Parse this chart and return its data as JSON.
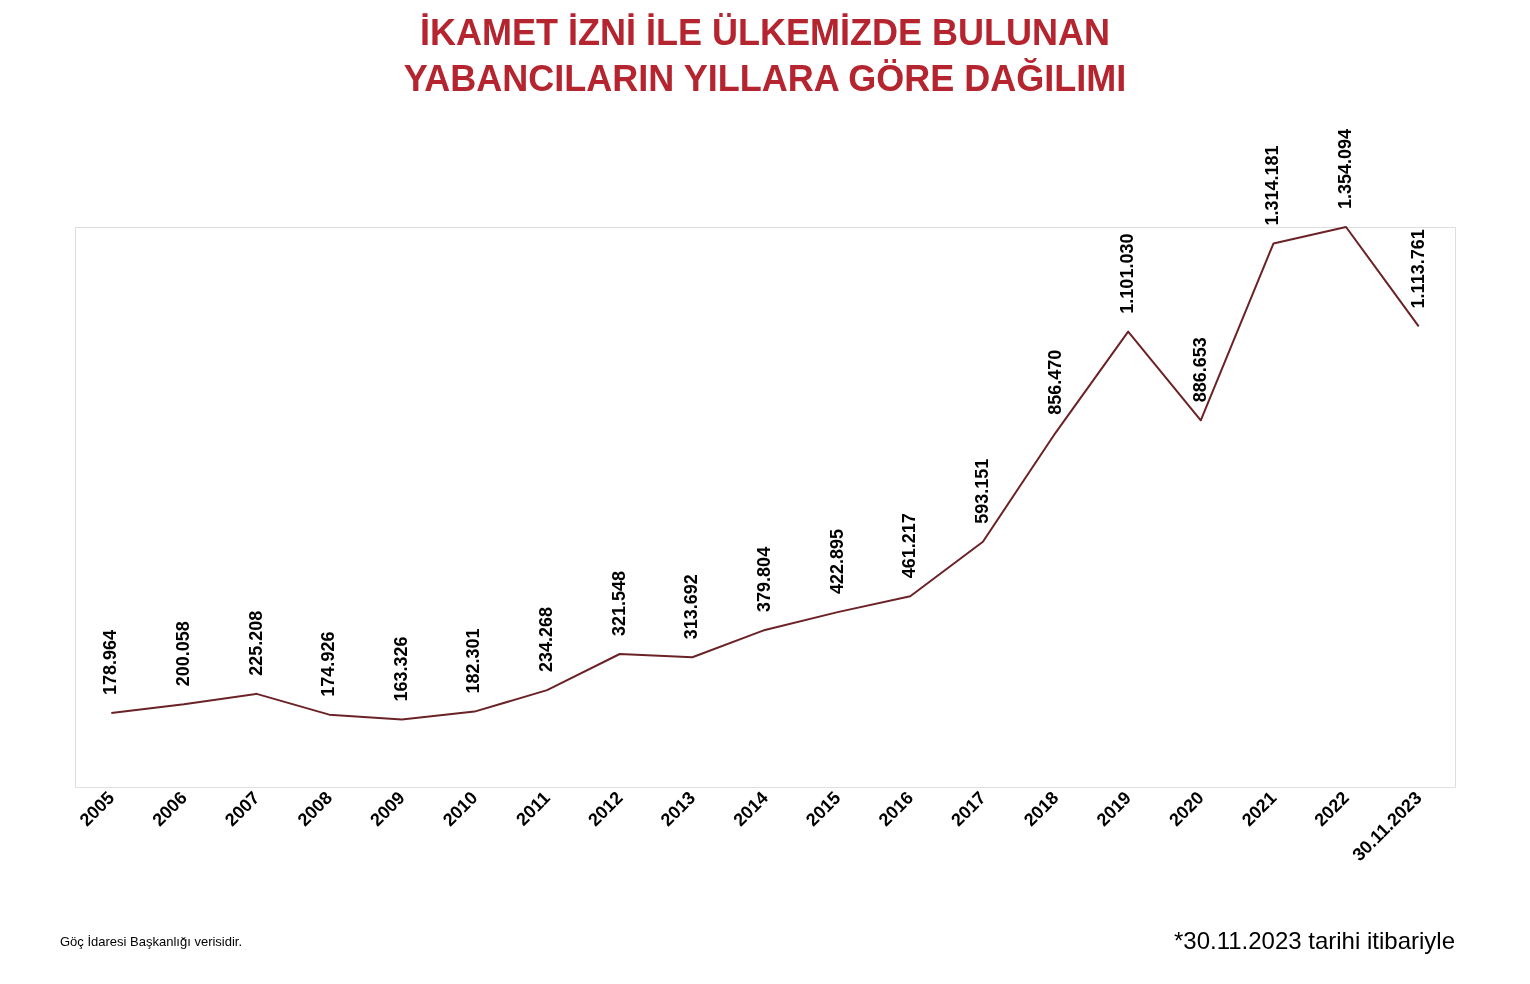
{
  "chart_data": {
    "type": "line",
    "title": "İKAMET İZNİ İLE ÜLKEMİZDE BULUNAN YABANCILARIN YILLARA GÖRE DAĞILIMI",
    "categories": [
      "2005",
      "2006",
      "2007",
      "2008",
      "2009",
      "2010",
      "2011",
      "2012",
      "2013",
      "2014",
      "2015",
      "2016",
      "2017",
      "2018",
      "2019",
      "2020",
      "2021",
      "2022",
      "30.11.2023"
    ],
    "series": [
      {
        "color": "#6b2226",
        "values": [
          178964,
          200058,
          225208,
          174926,
          163326,
          182301,
          234268,
          321548,
          313692,
          379804,
          422895,
          461217,
          593151,
          856470,
          1101030,
          886653,
          1314181,
          1354094,
          1113761
        ],
        "value_labels": [
          "178.964",
          "200.058",
          "225.208",
          "174.926",
          "163.326",
          "182.301",
          "234.268",
          "321.548",
          "313.692",
          "379.804",
          "422.895",
          "461.217",
          "593.151",
          "856.470",
          "1.101.030",
          "886.653",
          "1.314.181",
          "1.354.094",
          "1.113.761"
        ]
      }
    ],
    "annotations": [
      "Göç İdaresi Başkanlığı verisidir.",
      "*30.11.2023 tarihi itibariyle"
    ]
  }
}
